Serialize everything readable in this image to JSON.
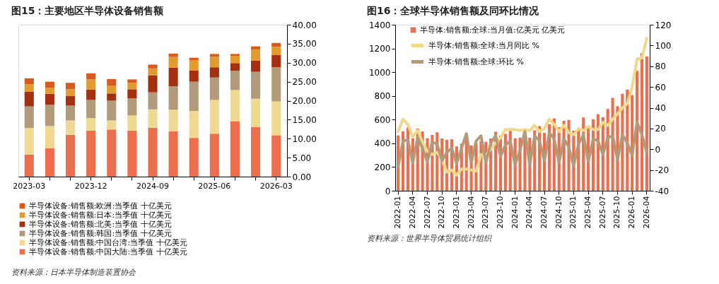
{
  "chart_data": [
    {
      "type": "bar",
      "title": "图15：主要地区半导体设备销售额",
      "stacked": true,
      "legend": "bottom",
      "grid": false,
      "categories": [
        "2023-03",
        null,
        null,
        "2023-12",
        null,
        null,
        "2024-09",
        null,
        null,
        "2025-06",
        null,
        null,
        "2026-03"
      ],
      "ylim": [
        0,
        40
      ],
      "yticks": [
        {
          "value": 0,
          "label": "0.00"
        },
        {
          "value": 5,
          "label": "5.00"
        },
        {
          "value": 10,
          "label": "10.00"
        },
        {
          "value": 15,
          "label": "15.00"
        },
        {
          "value": 20,
          "label": "20.00"
        },
        {
          "value": 25,
          "label": "25.00"
        },
        {
          "value": 30,
          "label": "30.00"
        },
        {
          "value": 35,
          "label": "35.00"
        },
        {
          "value": 40,
          "label": "40.00"
        }
      ],
      "series": [
        {
          "name": "半导体设备:销售额:中国大陆:当季值 十亿美元",
          "color": "#ec6e4c",
          "values": [
            5.8,
            7.5,
            11.0,
            12.1,
            12.4,
            12.1,
            12.9,
            11.9,
            10.2,
            11.3,
            14.6,
            13.1,
            10.9
          ]
        },
        {
          "name": "半导体设备:销售额:中国台湾:当季值 十亿美元",
          "color": "#f0d992",
          "values": [
            7.0,
            5.8,
            3.8,
            3.3,
            2.4,
            4.0,
            4.8,
            5.7,
            7.1,
            8.9,
            8.2,
            7.4,
            8.9
          ]
        },
        {
          "name": "半导体设备:销售额:韩国:当季值 十亿美元",
          "color": "#b29b7b",
          "values": [
            5.7,
            5.6,
            3.9,
            4.8,
            5.2,
            4.5,
            4.5,
            6.2,
            7.7,
            5.9,
            5.1,
            7.1,
            9.0
          ]
        },
        {
          "name": "半导体设备:销售额:北美:当季值 十亿美元",
          "color": "#a5300f",
          "values": [
            3.9,
            2.9,
            2.5,
            2.7,
            1.9,
            2.4,
            4.5,
            4.9,
            3.0,
            2.7,
            2.0,
            3.0,
            3.2
          ]
        },
        {
          "name": "半导体设备:销售额:日本:当季值 十亿美元",
          "color": "#e39b2e",
          "values": [
            1.9,
            1.6,
            1.8,
            2.7,
            2.0,
            1.7,
            1.8,
            2.8,
            2.7,
            2.8,
            1.9,
            2.9,
            2.2
          ]
        },
        {
          "name": "半导体设备:销售额:欧洲:当季值 十亿美元",
          "color": "#d85a1c",
          "values": [
            1.6,
            1.6,
            1.7,
            1.6,
            1.8,
            0.9,
            1.0,
            0.9,
            0.6,
            0.7,
            0.5,
            0.8,
            1.0
          ]
        }
      ],
      "annotations": [
        "资料来源：日本半导体制造装置协会"
      ]
    },
    {
      "type": "bar",
      "title": "图16：全球半导体销售额及同环比情况",
      "legend": "top left",
      "grid": false,
      "line_style": "solid",
      "categories": [
        "2022-01",
        null,
        null,
        "2022-04",
        null,
        null,
        "2022-07",
        null,
        null,
        "2022-10",
        null,
        null,
        "2023-01",
        null,
        null,
        "2023-04",
        null,
        null,
        "2023-07",
        null,
        null,
        "2023-10",
        null,
        null,
        "2024-01",
        null,
        null,
        "2024-04",
        null,
        null,
        "2024-07",
        null,
        null,
        "2024-10",
        null,
        null,
        "2025-01",
        null,
        null,
        "2025-04",
        null,
        null,
        "2025-07",
        null,
        null,
        "2025-10",
        null,
        null,
        "2026-01",
        null,
        null,
        "2026-04"
      ],
      "ylim": [
        0,
        1400
      ],
      "yticks": [
        0,
        200,
        400,
        600,
        800,
        1000,
        1200,
        1400
      ],
      "y2lim": [
        -40,
        120
      ],
      "y2ticks": [
        -40,
        -20,
        0,
        20,
        40,
        60,
        80,
        100,
        120
      ],
      "series": [
        {
          "name": "半导体:销售额:全球:当月值:亿美元 亿美元",
          "type": "bar",
          "color": "#ec6e4c",
          "values": [
            467,
            501,
            535,
            441,
            525,
            500,
            443,
            471,
            493,
            441,
            430,
            435,
            374,
            397,
            450,
            382,
            400,
            420,
            412,
            440,
            497,
            466,
            480,
            505,
            442,
            448,
            505,
            447,
            510,
            545,
            488,
            560,
            610,
            535,
            590,
            597,
            507,
            520,
            618,
            540,
            603,
            646,
            620,
            690,
            783,
            713,
            817,
            853,
            807,
            1012,
            1160,
            1133
          ]
        },
        {
          "name": "半导体:销售额:全球:当月同比 %",
          "type": "line",
          "axis": "y2",
          "color": "#f0d98a",
          "values": [
            17,
            29,
            24,
            12,
            18,
            7,
            -2,
            -5,
            -3,
            -10,
            -22,
            -20,
            -25,
            -19,
            -19,
            -20,
            -21,
            -5,
            -6,
            0,
            6,
            11,
            19,
            19,
            19,
            18,
            19,
            18,
            23,
            17,
            20,
            29,
            24,
            17,
            23,
            16,
            14,
            20,
            18,
            22,
            19,
            19,
            26,
            23,
            29,
            34,
            40,
            44,
            60,
            87,
            88,
            107
          ]
        },
        {
          "name": "半导体:销售额:全球:环比 %",
          "type": "line",
          "axis": "y2",
          "color": "#b29b7b",
          "values": [
            -17,
            8,
            9,
            -13,
            11,
            1,
            -12,
            7,
            5,
            -11,
            -3,
            1,
            -14,
            1,
            15,
            -13,
            8,
            13,
            -13,
            6,
            13,
            -7,
            4,
            8,
            -15,
            -1,
            17,
            -15,
            13,
            8,
            -11,
            16,
            10,
            -13,
            10,
            2,
            -16,
            5,
            14,
            -12,
            10,
            8,
            -5,
            11,
            13,
            -10,
            14,
            6,
            -6,
            26,
            14,
            -3
          ]
        }
      ],
      "annotations": [
        "资料来源：世界半导体贸易统计组织"
      ]
    }
  ]
}
